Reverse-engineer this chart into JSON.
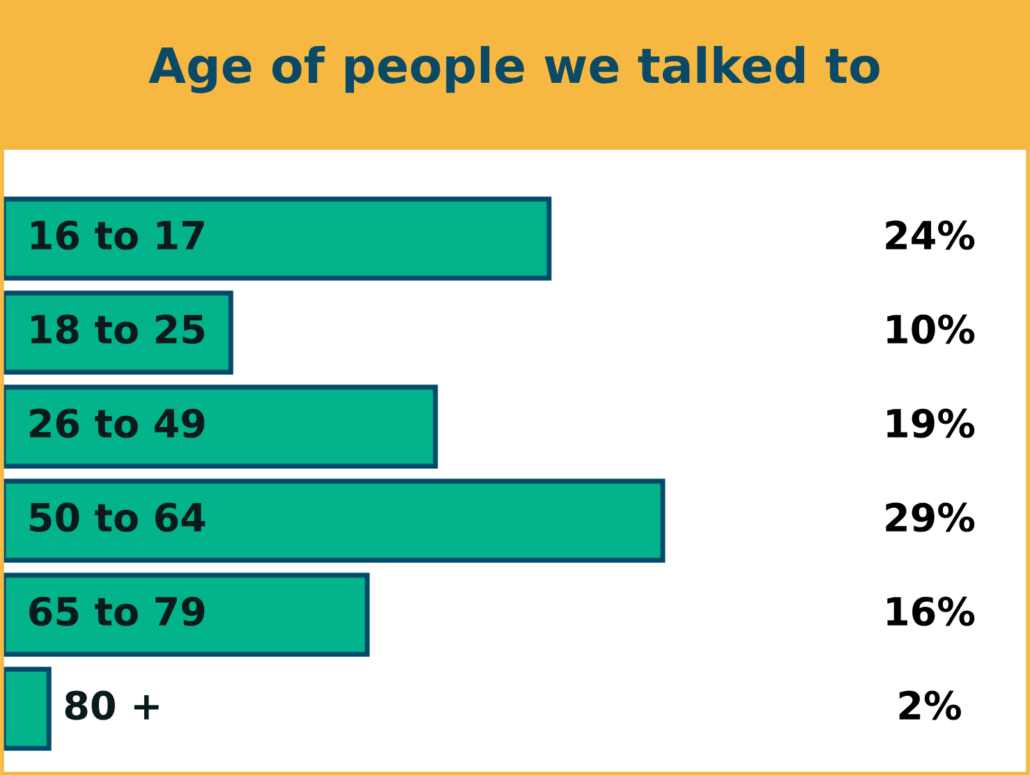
{
  "chart_data": {
    "type": "bar",
    "orientation": "horizontal",
    "title": "Age of people we talked to",
    "categories": [
      "16 to 17",
      "18 to 25",
      "26 to 49",
      "50 to 64",
      "65 to 79",
      "80 +"
    ],
    "values": [
      24,
      10,
      19,
      29,
      16,
      2
    ],
    "value_labels": [
      "24%",
      "10%",
      "19%",
      "29%",
      "16%",
      "2%"
    ],
    "color": "#03b38b",
    "xlim": [
      0,
      45
    ]
  }
}
